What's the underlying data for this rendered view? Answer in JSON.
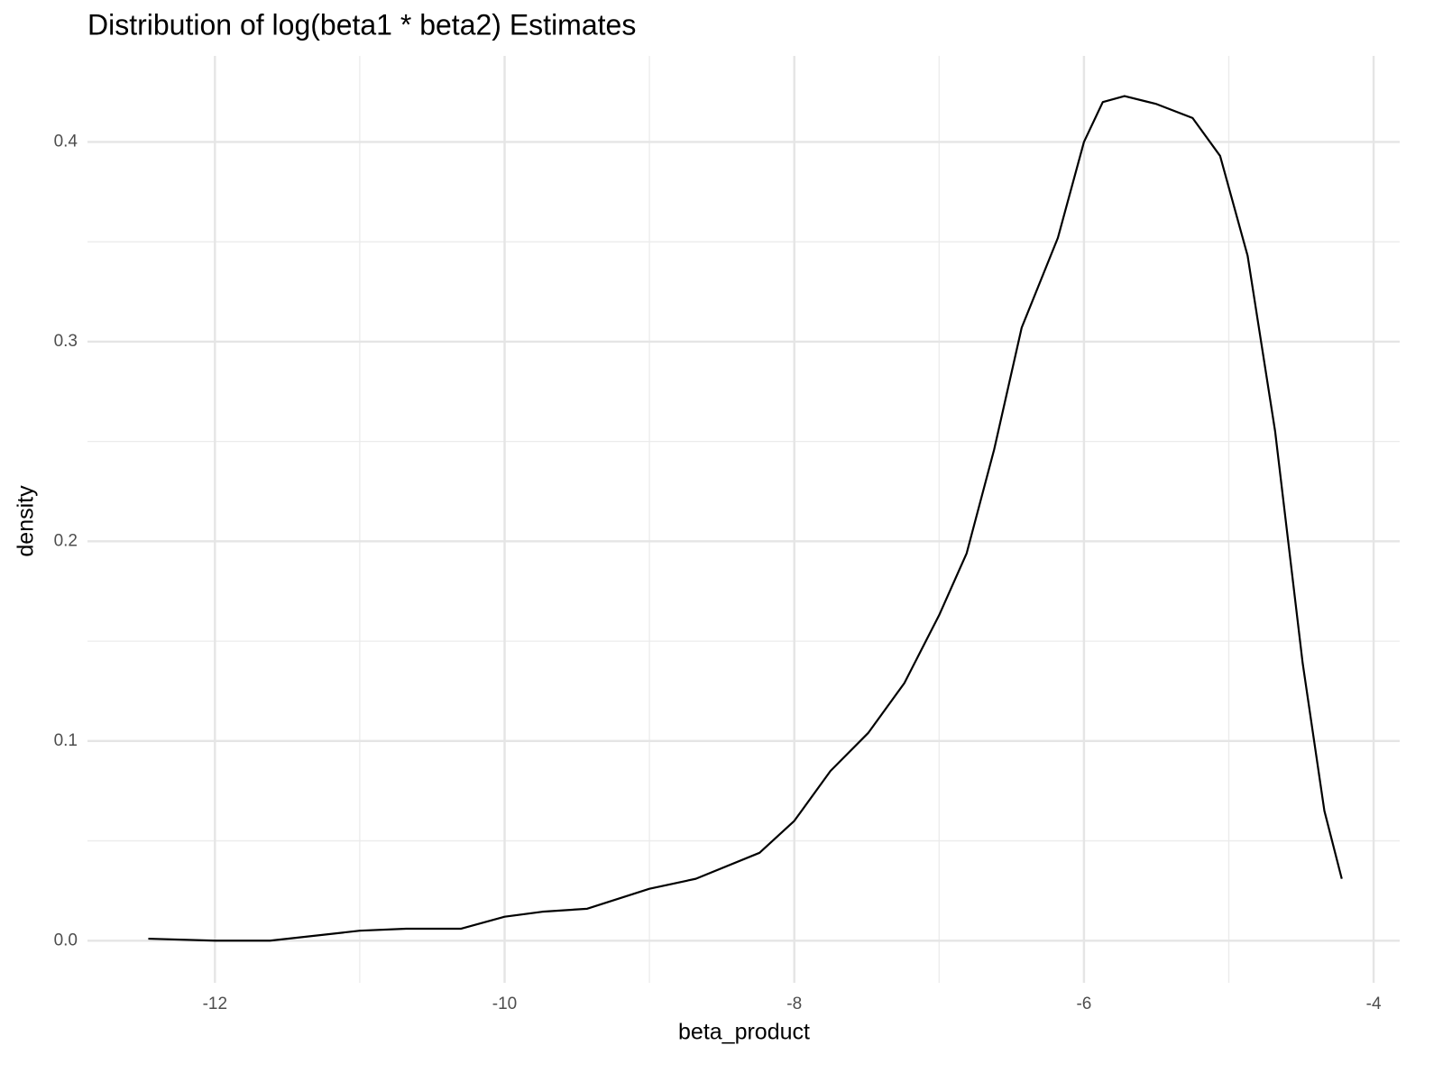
{
  "chart_data": {
    "type": "line",
    "title": "Distribution of log(beta1 * beta2) Estimates",
    "x_label": "beta_product",
    "y_label": "density",
    "x": [
      -12.46,
      -12.0,
      -11.62,
      -11.0,
      -10.68,
      -10.3,
      -10.0,
      -9.74,
      -9.43,
      -9.0,
      -8.68,
      -8.24,
      -8.0,
      -7.75,
      -7.49,
      -7.24,
      -7.0,
      -6.81,
      -6.62,
      -6.43,
      -6.18,
      -6.0,
      -5.87,
      -5.72,
      -5.5,
      -5.25,
      -5.06,
      -4.87,
      -4.68,
      -4.49,
      -4.34,
      -4.22
    ],
    "values": [
      0.001,
      0.0,
      0.0,
      0.005,
      0.006,
      0.006,
      0.012,
      0.0145,
      0.016,
      0.026,
      0.031,
      0.044,
      0.06,
      0.085,
      0.104,
      0.129,
      0.163,
      0.194,
      0.246,
      0.307,
      0.352,
      0.4,
      0.42,
      0.423,
      0.419,
      0.412,
      0.393,
      0.343,
      0.255,
      0.139,
      0.065,
      0.031
    ],
    "color": "#000000",
    "xlim": [
      -12.88,
      -3.82
    ],
    "ylim": [
      -0.0211,
      0.4431
    ],
    "xticks": [
      -12,
      -10,
      -8,
      -6,
      -4
    ],
    "yticks": [
      {
        "value": 0,
        "label": "0.0"
      },
      0.1,
      0.2,
      0.3,
      0.4
    ],
    "xminor": [
      -11,
      -9,
      -7,
      -5
    ],
    "yminor": [
      0.05,
      0.15,
      0.25,
      0.35
    ],
    "grid": true
  }
}
